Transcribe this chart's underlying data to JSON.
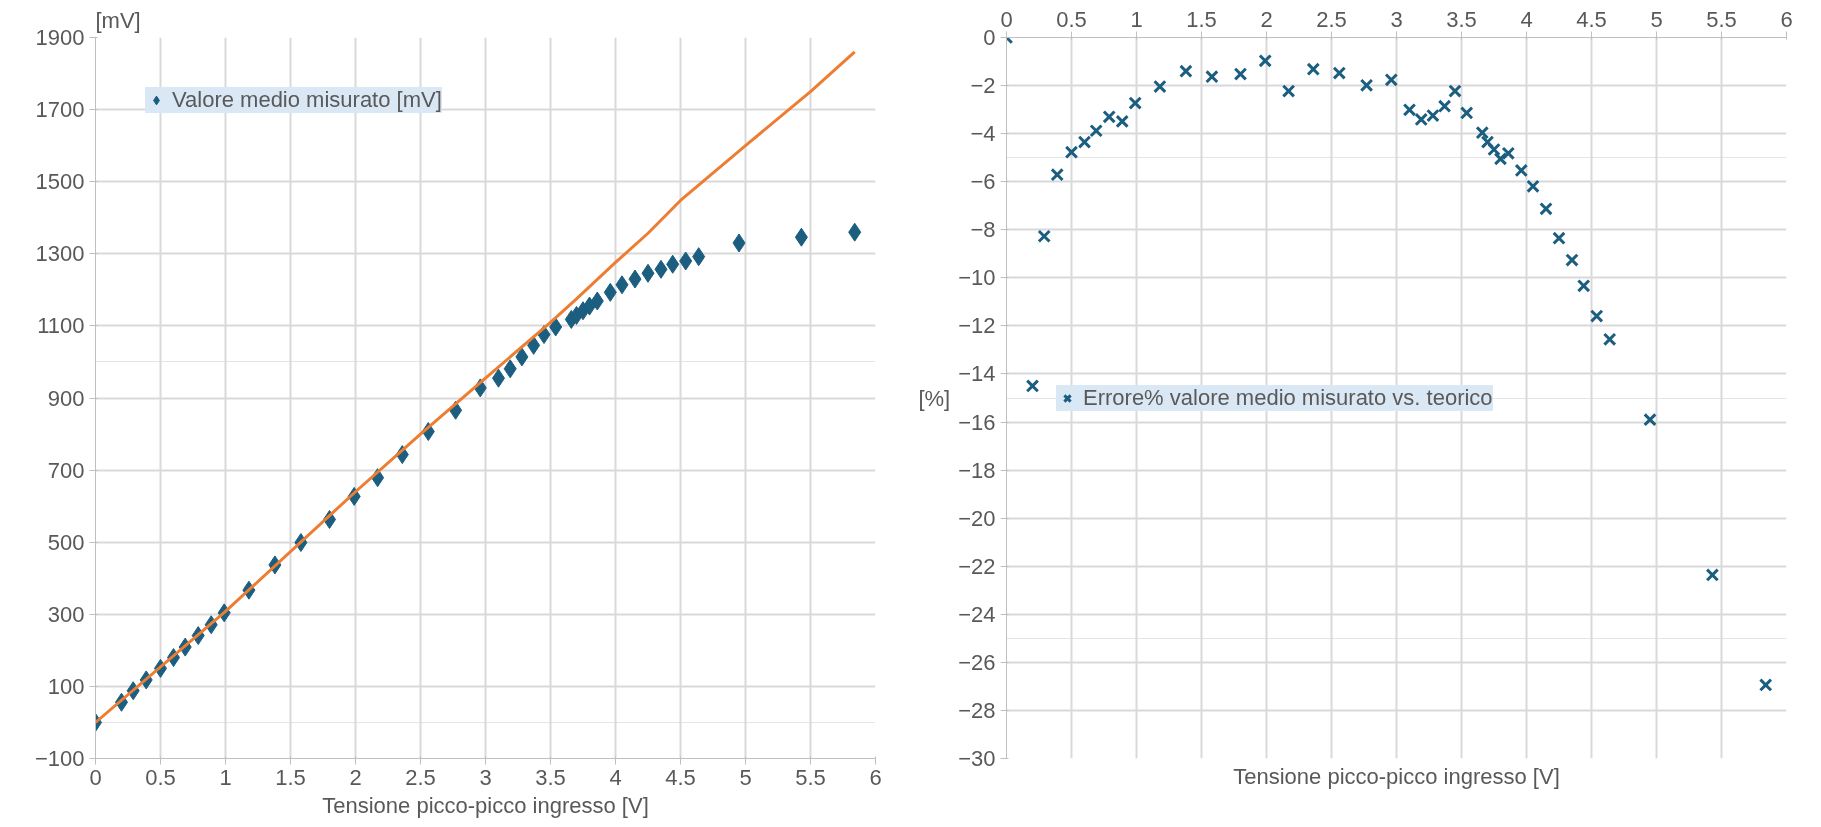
{
  "chart_data": [
    {
      "type": "scatter",
      "xlabel": "Tensione picco-picco ingresso [V]",
      "ylabel": "[mV]",
      "xlim": [
        0,
        6
      ],
      "ylim": [
        -100,
        1900
      ],
      "xticks": [
        0,
        0.5,
        1,
        1.5,
        2,
        2.5,
        3,
        3.5,
        4,
        4.5,
        5,
        5.5,
        6
      ],
      "yticks": [
        -100,
        100,
        300,
        500,
        700,
        900,
        1100,
        1300,
        1500,
        1700,
        1900
      ],
      "grid": true,
      "legend": "top left",
      "marker": "diamond",
      "series": [
        {
          "name": "Valore medio misurato [mV]",
          "color": "#1b5e80",
          "x": [
            0,
            0.2,
            0.29,
            0.39,
            0.5,
            0.6,
            0.69,
            0.79,
            0.89,
            0.99,
            1.18,
            1.38,
            1.58,
            1.8,
            1.99,
            2.17,
            2.36,
            2.56,
            2.77,
            2.96,
            3.1,
            3.19,
            3.28,
            3.37,
            3.45,
            3.54,
            3.66,
            3.7,
            3.75,
            3.8,
            3.86,
            3.96,
            4.05,
            4.15,
            4.25,
            4.35,
            4.44,
            4.54,
            4.64,
            4.95,
            5.43,
            5.84
          ],
          "values": [
            0,
            56,
            88,
            118,
            150,
            180,
            209,
            241,
            271,
            304,
            367,
            437,
            499,
            563,
            627,
            679,
            743,
            807,
            866,
            928,
            955,
            981,
            1014,
            1046,
            1076,
            1097,
            1118,
            1129,
            1142,
            1155,
            1169,
            1193,
            1214,
            1230,
            1246,
            1257,
            1271,
            1280,
            1292,
            1330,
            1346,
            1360
          ]
        },
        {
          "type": "line",
          "color": "#ed7d31",
          "marker": "none",
          "x": [
            0,
            1,
            2,
            2.5,
            3,
            3.5,
            3.7,
            4,
            4.25,
            4.5,
            5,
            5.5,
            5.84
          ],
          "values": [
            0,
            308,
            640,
            800,
            955,
            1110,
            1175,
            1276,
            1357,
            1448,
            1600,
            1750,
            1860
          ]
        }
      ]
    },
    {
      "type": "scatter",
      "xlabel": "Tensione picco-picco ingresso [V]",
      "ylabel": "[%]",
      "xlim": [
        0,
        6
      ],
      "ylim": [
        -30,
        0
      ],
      "xticks": [
        0,
        0.5,
        1,
        1.5,
        2,
        2.5,
        3,
        3.5,
        4,
        4.5,
        5,
        5.5,
        6
      ],
      "yticks": [
        0,
        -2,
        -4,
        -6,
        -8,
        -10,
        -12,
        -14,
        -16,
        -18,
        -20,
        -22,
        -24,
        -26,
        -28,
        -30
      ],
      "grid": true,
      "legend": "left",
      "marker": "cross",
      "series": [
        {
          "name": "Errore% valore medio misurato vs. teorico",
          "color": "#1b5e80",
          "x": [
            0,
            0.2,
            0.29,
            0.39,
            0.5,
            0.6,
            0.69,
            0.79,
            0.89,
            0.99,
            1.18,
            1.38,
            1.58,
            1.8,
            1.99,
            2.17,
            2.36,
            2.56,
            2.77,
            2.96,
            3.1,
            3.19,
            3.28,
            3.37,
            3.45,
            3.54,
            3.66,
            3.7,
            3.75,
            3.8,
            3.86,
            3.96,
            4.05,
            4.15,
            4.25,
            4.35,
            4.44,
            4.54,
            4.64,
            4.95,
            5.43,
            5.84
          ],
          "values": [
            0,
            -14.5,
            -8.27,
            -5.71,
            -4.77,
            -4.35,
            -3.88,
            -3.3,
            -3.49,
            -2.73,
            -2.04,
            -1.4,
            -1.63,
            -1.52,
            -0.97,
            -2.23,
            -1.32,
            -1.48,
            -1.99,
            -1.76,
            -3.01,
            -3.41,
            -3.25,
            -2.86,
            -2.23,
            -3.14,
            -3.96,
            -4.35,
            -4.66,
            -5.05,
            -4.82,
            -5.53,
            -6.19,
            -7.13,
            -8.35,
            -9.26,
            -10.33,
            -11.59,
            -12.56,
            -15.9,
            -22.36,
            -26.94
          ]
        }
      ]
    }
  ]
}
